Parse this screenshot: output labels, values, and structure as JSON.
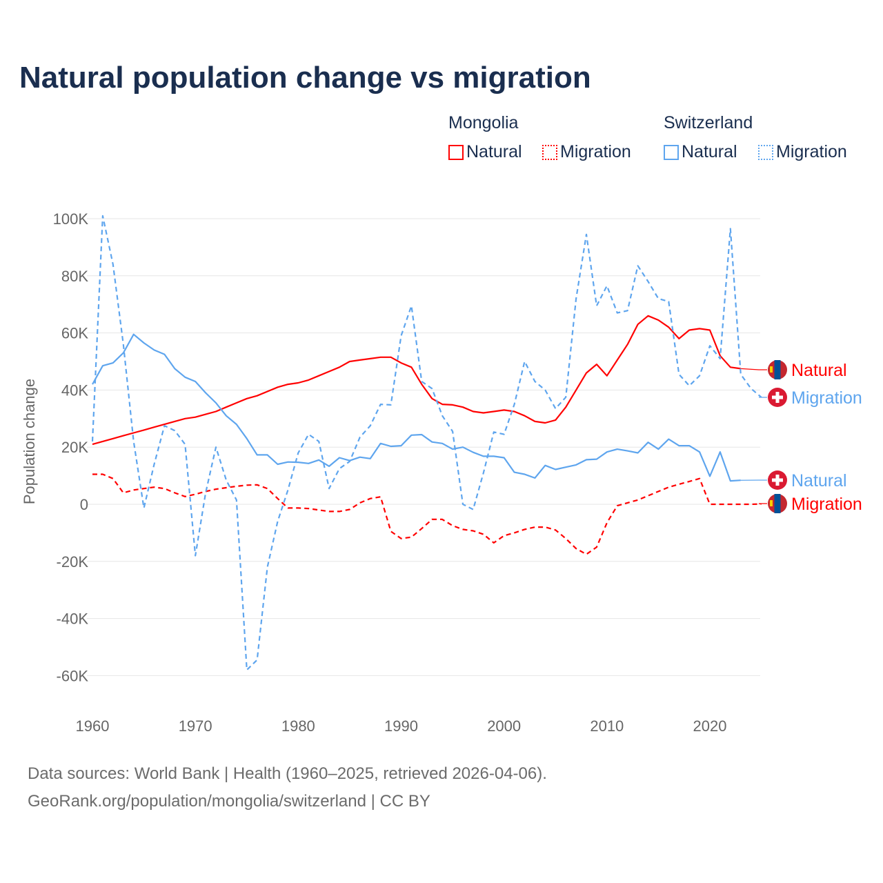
{
  "title": "Natural population change vs migration",
  "legend": {
    "groups": [
      {
        "name": "Mongolia",
        "items": [
          "Natural",
          "Migration"
        ],
        "color": "#ff0000"
      },
      {
        "name": "Switzerland",
        "items": [
          "Natural",
          "Migration"
        ],
        "color": "#5ea5ee"
      }
    ]
  },
  "footer": {
    "line1": "Data sources: World Bank | Health (1960–2025, retrieved 2026-04-06).",
    "line2": "GeoRank.org/population/mongolia/switzerland | CC BY"
  },
  "chart_data": {
    "type": "line",
    "title": "Natural population change vs migration",
    "xlabel": "",
    "ylabel": "Population change",
    "xlim": [
      1960,
      2025
    ],
    "ylim": [
      -70000,
      100000
    ],
    "xticks": [
      1960,
      1970,
      1980,
      1990,
      2000,
      2010,
      2020
    ],
    "xtick_labels": [
      "1960",
      "1970",
      "1980",
      "1990",
      "2000",
      "2010",
      "2020"
    ],
    "yticks": [
      100000,
      80000,
      60000,
      40000,
      20000,
      0,
      -20000,
      -40000,
      -60000
    ],
    "ytick_labels": [
      "100K",
      "80K",
      "60K",
      "40K",
      "20K",
      "0",
      "-20K",
      "-40K",
      "-60K"
    ],
    "grid": true,
    "legend_position": "top-right",
    "series": [
      {
        "name": "Mongolia Natural",
        "end_label": "Natural",
        "country": "Mongolia",
        "color": "#ff0000",
        "dashed": false,
        "start": 1960,
        "values": [
          21000,
          22000,
          23000,
          24000,
          25000,
          26000,
          27000,
          28000,
          29000,
          30000,
          30500,
          31500,
          32500,
          34000,
          35500,
          37000,
          38000,
          39500,
          41000,
          42000,
          42500,
          43500,
          45000,
          46500,
          48000,
          50000,
          50500,
          51000,
          51500,
          51500,
          49500,
          48000,
          42000,
          37000,
          35000,
          34800,
          34000,
          32500,
          32000,
          32500,
          33000,
          32500,
          31000,
          29000,
          28500,
          29500,
          34000,
          40000,
          46000,
          49000,
          45000,
          50500,
          56000,
          63000,
          66000,
          64500,
          62000,
          58000,
          61000,
          61500,
          61000,
          52000,
          48000,
          47500
        ]
      },
      {
        "name": "Mongolia Migration",
        "end_label": "Migration",
        "country": "Mongolia",
        "color": "#ff0000",
        "dashed": true,
        "start": 1960,
        "values": [
          10500,
          10500,
          9000,
          4000,
          5000,
          5500,
          6000,
          5500,
          4000,
          2700,
          3500,
          4500,
          5300,
          5800,
          6300,
          6700,
          6800,
          5500,
          2000,
          -1300,
          -1300,
          -1500,
          -2000,
          -2500,
          -2500,
          -1800,
          500,
          2000,
          2600,
          -9500,
          -12000,
          -11500,
          -8500,
          -5300,
          -5300,
          -7500,
          -8800,
          -9300,
          -10500,
          -13500,
          -11000,
          -10000,
          -8800,
          -8000,
          -8000,
          -9000,
          -12000,
          -15500,
          -17500,
          -15000,
          -6500,
          -500,
          500,
          1500,
          3000,
          4500,
          6000,
          7000,
          8000,
          9000,
          0,
          0,
          0,
          0,
          0,
          100
        ]
      },
      {
        "name": "Switzerland Natural",
        "end_label": "Natural",
        "country": "Switzerland",
        "color": "#5ea5ee",
        "dashed": false,
        "start": 1960,
        "values": [
          42000,
          48500,
          49500,
          53000,
          59500,
          56500,
          54000,
          52500,
          47500,
          44500,
          43000,
          39000,
          35500,
          31000,
          28000,
          23000,
          17300,
          17300,
          14000,
          14800,
          14700,
          14300,
          15500,
          13300,
          16300,
          15300,
          16500,
          16000,
          21300,
          20300,
          20500,
          24200,
          24400,
          21800,
          21300,
          19300,
          20000,
          18200,
          16800,
          16800,
          16300,
          11200,
          10500,
          9200,
          13600,
          12200,
          13000,
          13800,
          15600,
          15800,
          18300,
          19300,
          18700,
          18000,
          21700,
          19300,
          22800,
          20500,
          20500,
          18300,
          9800,
          18300,
          8200,
          8400
        ]
      },
      {
        "name": "Switzerland Migration",
        "end_label": "Migration",
        "country": "Switzerland",
        "color": "#5ea5ee",
        "dashed": true,
        "start": 1960,
        "values": [
          22000,
          101000,
          84000,
          56000,
          22000,
          -1300,
          14000,
          27500,
          25800,
          21000,
          -18000,
          4000,
          20000,
          8500,
          1500,
          -58000,
          -54500,
          -22000,
          -6000,
          5000,
          18000,
          24500,
          22000,
          5500,
          12500,
          15000,
          23500,
          27500,
          35000,
          34800,
          59000,
          69500,
          43000,
          40500,
          31000,
          25500,
          0,
          -1800,
          11000,
          25300,
          24500,
          35000,
          50000,
          43000,
          40000,
          33500,
          37500,
          72000,
          94500,
          69500,
          76500,
          67000,
          67800,
          83500,
          78000,
          72000,
          71000,
          45500,
          41500,
          45000,
          55500,
          51000,
          96500,
          45500,
          40500,
          37500
        ]
      }
    ]
  }
}
